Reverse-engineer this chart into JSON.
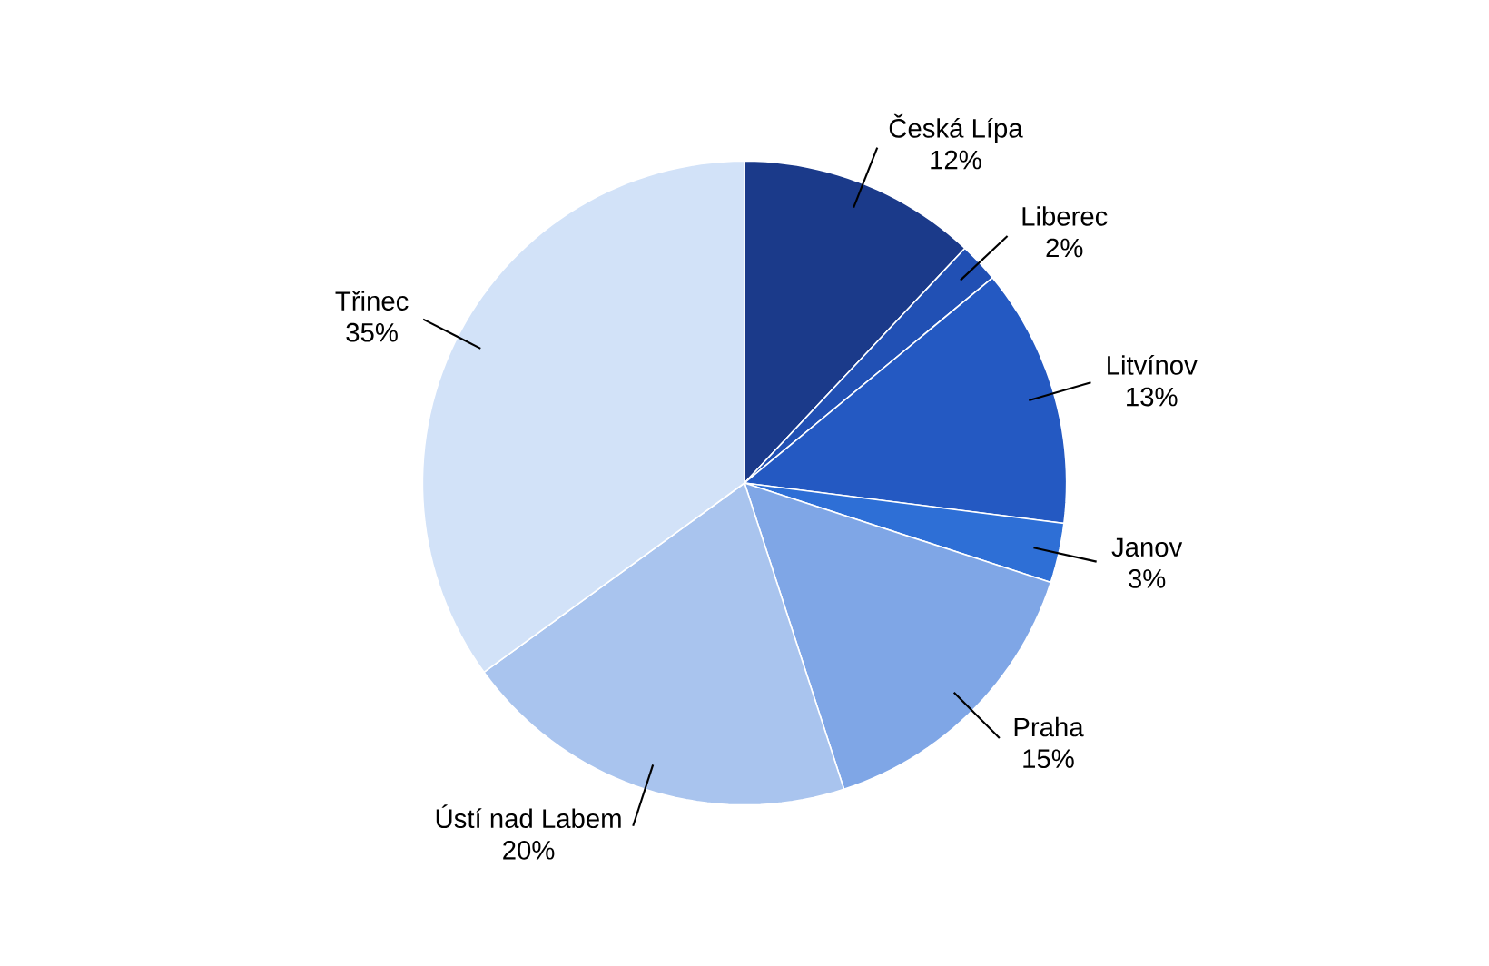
{
  "chart_data": {
    "type": "pie",
    "categories": [
      "Česká Lípa",
      "Liberec",
      "Litvínov",
      "Janov",
      "Praha",
      "Ústí nad Labem",
      "Třinec"
    ],
    "values": [
      12,
      2,
      13,
      3,
      15,
      20,
      35
    ],
    "value_labels": [
      "12%",
      "2%",
      "13%",
      "3%",
      "15%",
      "20%",
      "35%"
    ],
    "colors": [
      "#1b3a8a",
      "#2150b4",
      "#2459c2",
      "#2e6fd6",
      "#7fa6e6",
      "#a9c4ee",
      "#d2e2f8"
    ],
    "legend": false
  }
}
